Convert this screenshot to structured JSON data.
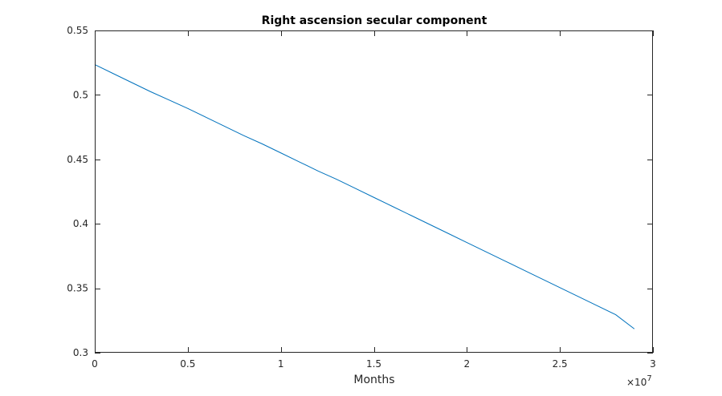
{
  "chart_data": {
    "type": "line",
    "title": "Right ascension secular component",
    "xlabel": "Months",
    "ylabel": "",
    "x_multiplier_base": "×10",
    "x_multiplier_exponent": "7",
    "xlim": [
      0,
      3
    ],
    "ylim": [
      0.3,
      0.55
    ],
    "xticks": [
      0,
      0.5,
      1,
      1.5,
      2,
      2.5,
      3
    ],
    "xtick_labels": [
      "0",
      "0.5",
      "1",
      "1.5",
      "2",
      "2.5",
      "3"
    ],
    "yticks": [
      0.3,
      0.35,
      0.4,
      0.45,
      0.5,
      0.55
    ],
    "ytick_labels": [
      "0.3",
      "0.35",
      "0.4",
      "0.45",
      "0.5",
      "0.55"
    ],
    "grid": false,
    "series_color": "#0072BD",
    "series": [
      {
        "x": [
          0,
          0.1,
          0.2,
          0.3,
          0.4,
          0.5,
          0.6,
          0.7,
          0.8,
          0.9,
          1.0,
          1.1,
          1.2,
          1.3,
          1.4,
          1.5,
          1.6,
          1.7,
          1.8,
          1.9,
          2.0,
          2.1,
          2.2,
          2.3,
          2.4,
          2.5,
          2.6,
          2.7,
          2.8,
          2.9
        ],
        "y": [
          0.5235,
          0.5165,
          0.5095,
          0.5025,
          0.496,
          0.4895,
          0.4825,
          0.4755,
          0.4685,
          0.462,
          0.455,
          0.448,
          0.441,
          0.4345,
          0.4275,
          0.4205,
          0.4135,
          0.4065,
          0.3995,
          0.3925,
          0.3855,
          0.3785,
          0.3715,
          0.3645,
          0.3575,
          0.3505,
          0.3435,
          0.3365,
          0.3295,
          0.3185
        ]
      }
    ]
  }
}
